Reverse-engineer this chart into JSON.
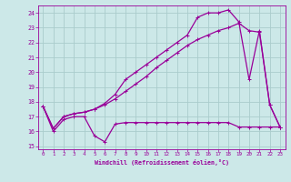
{
  "xlabel": "Windchill (Refroidissement éolien,°C)",
  "bg_color": "#cce8e8",
  "grid_color": "#aacccc",
  "line_color": "#990099",
  "xlim": [
    -0.5,
    23.5
  ],
  "ylim": [
    14.8,
    24.5
  ],
  "yticks": [
    15,
    16,
    17,
    18,
    19,
    20,
    21,
    22,
    23,
    24
  ],
  "xticks": [
    0,
    1,
    2,
    3,
    4,
    5,
    6,
    7,
    8,
    9,
    10,
    11,
    12,
    13,
    14,
    15,
    16,
    17,
    18,
    19,
    20,
    21,
    22,
    23
  ],
  "line1_x": [
    0,
    1,
    2,
    3,
    4,
    5,
    6,
    7,
    8,
    9,
    10,
    11,
    12,
    13,
    14,
    15,
    16,
    17,
    18,
    19,
    20,
    21,
    22,
    23
  ],
  "line1_y": [
    17.7,
    16.0,
    16.8,
    17.0,
    17.0,
    15.7,
    15.3,
    16.5,
    16.6,
    16.6,
    16.6,
    16.6,
    16.6,
    16.6,
    16.6,
    16.6,
    16.6,
    16.6,
    16.6,
    16.3,
    16.3,
    16.3,
    16.3,
    16.3
  ],
  "line2_x": [
    0,
    1,
    2,
    3,
    4,
    5,
    6,
    7,
    8,
    9,
    10,
    11,
    12,
    13,
    14,
    15,
    16,
    17,
    18,
    19,
    20,
    21,
    22,
    23
  ],
  "line2_y": [
    17.7,
    16.2,
    17.0,
    17.2,
    17.3,
    17.5,
    17.8,
    18.2,
    18.7,
    19.2,
    19.7,
    20.3,
    20.8,
    21.3,
    21.8,
    22.2,
    22.5,
    22.8,
    23.0,
    23.3,
    22.8,
    22.7,
    17.8,
    16.3
  ],
  "line3_x": [
    0,
    1,
    2,
    3,
    4,
    5,
    6,
    7,
    8,
    9,
    10,
    11,
    12,
    13,
    14,
    15,
    16,
    17,
    18,
    19,
    20,
    21,
    22,
    23
  ],
  "line3_y": [
    17.7,
    16.2,
    17.0,
    17.2,
    17.3,
    17.5,
    17.9,
    18.5,
    19.5,
    20.0,
    20.5,
    21.0,
    21.5,
    22.0,
    22.5,
    23.7,
    24.0,
    24.0,
    24.2,
    23.4,
    19.5,
    22.8,
    17.8,
    16.3
  ]
}
